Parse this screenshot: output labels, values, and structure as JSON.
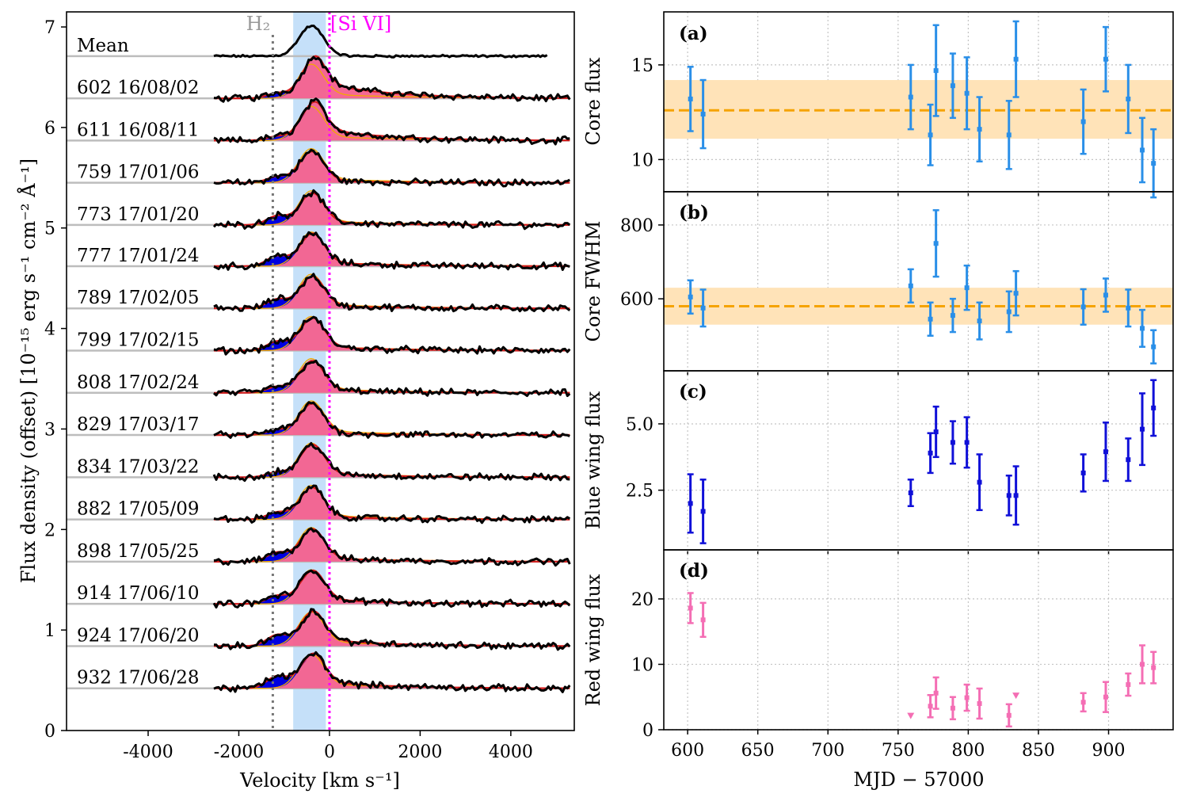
{
  "chart_data": [
    {
      "type": "line",
      "panel": "left",
      "xlabel": "Velocity [km s⁻¹]",
      "ylabel": "Flux density (offset) [10⁻¹⁵ erg s⁻¹ cm⁻² Å⁻¹]",
      "xlim": [
        -5800,
        5400
      ],
      "ylim": [
        0,
        7.15
      ],
      "xticks": [
        -4000,
        -2000,
        0,
        2000,
        4000
      ],
      "xtick_labels": [
        "-4000",
        "-2000",
        "0",
        "2000",
        "4000"
      ],
      "yticks": [
        0,
        1,
        2,
        3,
        4,
        5,
        6,
        7
      ],
      "ytick_labels": [
        "0",
        "1",
        "2",
        "3",
        "4",
        "5",
        "6",
        "7"
      ],
      "annotations": {
        "h2_label": "H₂",
        "h2_velocity": -1250,
        "sivi_label": "[Si VI]",
        "sivi_velocity": 0,
        "core_band": [
          -800,
          -80
        ]
      },
      "spectra": [
        {
          "label": "Mean",
          "offset": 6.71,
          "peak": 0.3,
          "red_wing": 0.0,
          "blue_wing": 0.0,
          "x_end": 4800
        },
        {
          "label": "602 16/08/02",
          "offset": 6.29,
          "peak": 0.3,
          "red_wing": 0.16,
          "blue_wing": 0.05,
          "x_end": 5300
        },
        {
          "label": "611 16/08/11",
          "offset": 5.87,
          "peak": 0.3,
          "red_wing": 0.12,
          "blue_wing": 0.04,
          "x_end": 5300
        },
        {
          "label": "759 17/01/06",
          "offset": 5.45,
          "peak": 0.3,
          "red_wing": 0.02,
          "blue_wing": 0.06,
          "x_end": 5300
        },
        {
          "label": "773 17/01/20",
          "offset": 5.03,
          "peak": 0.3,
          "red_wing": 0.03,
          "blue_wing": 0.09,
          "x_end": 5300
        },
        {
          "label": "777 17/01/24",
          "offset": 4.62,
          "peak": 0.3,
          "red_wing": 0.04,
          "blue_wing": 0.1,
          "x_end": 5300
        },
        {
          "label": "789 17/02/05",
          "offset": 4.2,
          "peak": 0.3,
          "red_wing": 0.03,
          "blue_wing": 0.09,
          "x_end": 5300
        },
        {
          "label": "799 17/02/15",
          "offset": 3.78,
          "peak": 0.3,
          "red_wing": 0.04,
          "blue_wing": 0.09,
          "x_end": 5300
        },
        {
          "label": "808 17/02/24",
          "offset": 3.36,
          "peak": 0.3,
          "red_wing": 0.03,
          "blue_wing": 0.06,
          "x_end": 5300
        },
        {
          "label": "829 17/03/17",
          "offset": 2.94,
          "peak": 0.3,
          "red_wing": 0.02,
          "blue_wing": 0.05,
          "x_end": 5300
        },
        {
          "label": "834 17/03/22",
          "offset": 2.52,
          "peak": 0.3,
          "red_wing": 0.04,
          "blue_wing": 0.05,
          "x_end": 5300
        },
        {
          "label": "882 17/05/09",
          "offset": 2.1,
          "peak": 0.3,
          "red_wing": 0.03,
          "blue_wing": 0.07,
          "x_end": 5300
        },
        {
          "label": "898 17/05/25",
          "offset": 1.68,
          "peak": 0.3,
          "red_wing": 0.04,
          "blue_wing": 0.09,
          "x_end": 5300
        },
        {
          "label": "914 17/06/10",
          "offset": 1.26,
          "peak": 0.3,
          "red_wing": 0.05,
          "blue_wing": 0.08,
          "x_end": 5300
        },
        {
          "label": "924 17/06/20",
          "offset": 0.84,
          "peak": 0.3,
          "red_wing": 0.07,
          "blue_wing": 0.11,
          "x_end": 5300
        },
        {
          "label": "932 17/06/28",
          "offset": 0.42,
          "peak": 0.3,
          "red_wing": 0.07,
          "blue_wing": 0.12,
          "x_end": 5300
        }
      ]
    },
    {
      "type": "scatter",
      "panel": "(a)",
      "ylabel": "Core flux",
      "color": "#2a8fe8",
      "ylim": [
        8.3,
        17.8
      ],
      "yticks": [
        10,
        15
      ],
      "ytick_labels": [
        "10",
        "15"
      ],
      "mean_line": 12.6,
      "mean_band": [
        11.1,
        14.2
      ],
      "points": [
        {
          "x": 602,
          "y": 13.2,
          "err": 1.7
        },
        {
          "x": 611,
          "y": 12.4,
          "err": 1.8
        },
        {
          "x": 759,
          "y": 13.3,
          "err": 1.7
        },
        {
          "x": 773,
          "y": 11.3,
          "err": 1.6
        },
        {
          "x": 777,
          "y": 14.7,
          "err": 2.4
        },
        {
          "x": 789,
          "y": 13.9,
          "err": 1.7
        },
        {
          "x": 799,
          "y": 13.5,
          "err": 1.9
        },
        {
          "x": 808,
          "y": 11.6,
          "err": 1.7
        },
        {
          "x": 829,
          "y": 11.3,
          "err": 1.8
        },
        {
          "x": 834,
          "y": 15.3,
          "err": 2.0
        },
        {
          "x": 882,
          "y": 12.0,
          "err": 1.7
        },
        {
          "x": 898,
          "y": 15.3,
          "err": 1.7
        },
        {
          "x": 914,
          "y": 13.2,
          "err": 1.8
        },
        {
          "x": 924,
          "y": 10.5,
          "err": 1.7
        },
        {
          "x": 932,
          "y": 9.8,
          "err": 1.8
        }
      ]
    },
    {
      "type": "scatter",
      "panel": "(b)",
      "ylabel": "Core FWHM",
      "color": "#2a8fe8",
      "ylim": [
        405,
        890
      ],
      "yticks": [
        600,
        800
      ],
      "ytick_labels": [
        "600",
        "800"
      ],
      "mean_line": 580,
      "mean_band": [
        530,
        630
      ],
      "points": [
        {
          "x": 602,
          "y": 605,
          "err": 45
        },
        {
          "x": 611,
          "y": 575,
          "err": 50
        },
        {
          "x": 759,
          "y": 635,
          "err": 45
        },
        {
          "x": 773,
          "y": 545,
          "err": 45
        },
        {
          "x": 777,
          "y": 750,
          "err": 90
        },
        {
          "x": 789,
          "y": 555,
          "err": 45
        },
        {
          "x": 799,
          "y": 630,
          "err": 60
        },
        {
          "x": 808,
          "y": 540,
          "err": 50
        },
        {
          "x": 829,
          "y": 565,
          "err": 55
        },
        {
          "x": 834,
          "y": 615,
          "err": 60
        },
        {
          "x": 882,
          "y": 578,
          "err": 48
        },
        {
          "x": 898,
          "y": 610,
          "err": 45
        },
        {
          "x": 914,
          "y": 575,
          "err": 50
        },
        {
          "x": 924,
          "y": 520,
          "err": 50
        },
        {
          "x": 932,
          "y": 470,
          "err": 45
        }
      ]
    },
    {
      "type": "scatter",
      "panel": "(c)",
      "ylabel": "Blue wing flux",
      "color": "#1010d8",
      "ylim": [
        0.25,
        7.0
      ],
      "yticks": [
        2.5,
        5.0
      ],
      "ytick_labels": [
        "2.5",
        "5.0"
      ],
      "points": [
        {
          "x": 602,
          "y": 2.0,
          "err": 1.1
        },
        {
          "x": 611,
          "y": 1.7,
          "err": 1.2
        },
        {
          "x": 759,
          "y": 2.4,
          "err": 0.5
        },
        {
          "x": 773,
          "y": 3.9,
          "err": 0.75
        },
        {
          "x": 777,
          "y": 4.7,
          "err": 0.95
        },
        {
          "x": 789,
          "y": 4.3,
          "err": 0.8
        },
        {
          "x": 799,
          "y": 4.3,
          "err": 0.95
        },
        {
          "x": 808,
          "y": 2.8,
          "err": 1.05
        },
        {
          "x": 829,
          "y": 2.3,
          "err": 0.75
        },
        {
          "x": 834,
          "y": 2.3,
          "err": 1.1
        },
        {
          "x": 882,
          "y": 3.15,
          "err": 0.7
        },
        {
          "x": 898,
          "y": 3.95,
          "err": 1.1
        },
        {
          "x": 914,
          "y": 3.65,
          "err": 0.8
        },
        {
          "x": 924,
          "y": 4.8,
          "err": 1.35
        },
        {
          "x": 932,
          "y": 5.6,
          "err": 1.05
        }
      ]
    },
    {
      "type": "scatter",
      "panel": "(d)",
      "ylabel": "Red wing flux",
      "color": "#f46eb4",
      "xlabel": "MJD − 57000",
      "xlim": [
        583,
        946
      ],
      "xticks": [
        600,
        650,
        700,
        750,
        800,
        850,
        900
      ],
      "xtick_labels": [
        "600",
        "650",
        "700",
        "750",
        "800",
        "850",
        "900"
      ],
      "ylim": [
        0,
        27.5
      ],
      "yticks": [
        0,
        10,
        20
      ],
      "ytick_labels": [
        "0",
        "10",
        "20"
      ],
      "points": [
        {
          "x": 602,
          "y": 18.6,
          "err": 2.3
        },
        {
          "x": 611,
          "y": 16.8,
          "err": 2.6
        },
        {
          "x": 773,
          "y": 3.6,
          "err": 1.7
        },
        {
          "x": 777,
          "y": 5.6,
          "err": 2.4
        },
        {
          "x": 789,
          "y": 3.3,
          "err": 1.7
        },
        {
          "x": 799,
          "y": 4.9,
          "err": 2.0
        },
        {
          "x": 808,
          "y": 4.0,
          "err": 2.3
        },
        {
          "x": 829,
          "y": 2.2,
          "err": 1.7
        },
        {
          "x": 882,
          "y": 4.2,
          "err": 1.4
        },
        {
          "x": 898,
          "y": 5.0,
          "err": 2.3
        },
        {
          "x": 914,
          "y": 6.9,
          "err": 1.7
        },
        {
          "x": 924,
          "y": 10.0,
          "err": 2.9
        },
        {
          "x": 932,
          "y": 9.5,
          "err": 2.4
        }
      ],
      "upper_limits": [
        {
          "x": 759,
          "y": 2.1
        },
        {
          "x": 834,
          "y": 5.2
        }
      ]
    }
  ]
}
